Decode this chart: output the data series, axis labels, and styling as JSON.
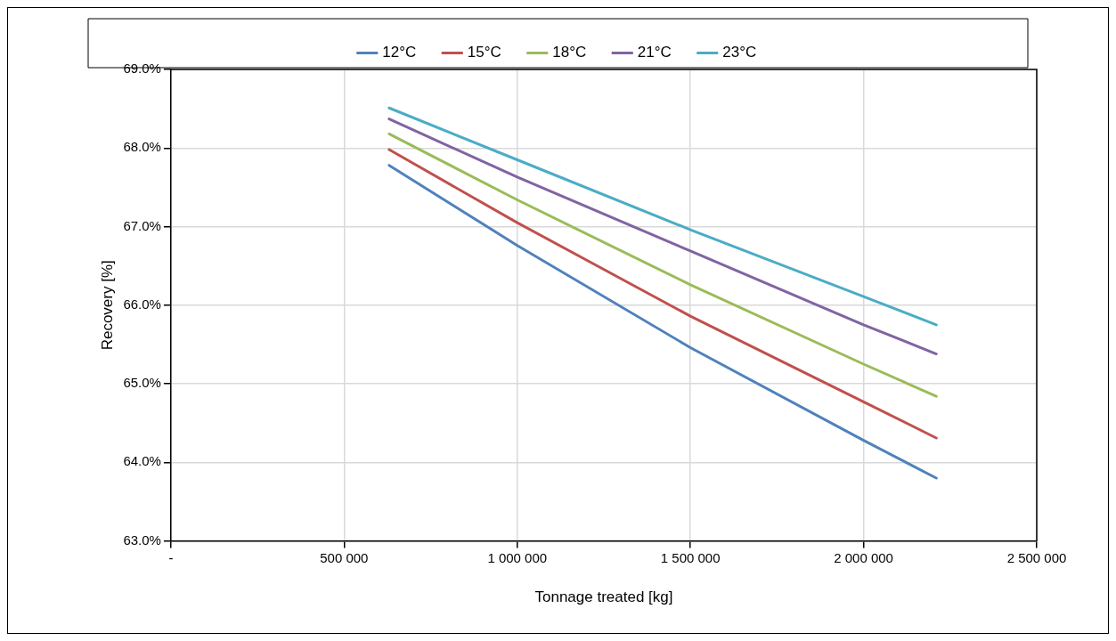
{
  "chart_data": {
    "type": "line",
    "xlabel": "Tonnage treated [kg]",
    "ylabel": "Recovery [%]",
    "x": [
      630000,
      1000000,
      1500000,
      2000000,
      2210000
    ],
    "series": [
      {
        "name": "12°C",
        "color": "#4f81bd",
        "values": [
          67.78,
          66.76,
          65.46,
          64.28,
          63.8
        ]
      },
      {
        "name": "15°C",
        "color": "#c0504d",
        "values": [
          67.98,
          67.05,
          65.86,
          64.77,
          64.31
        ]
      },
      {
        "name": "18°C",
        "color": "#9bbb59",
        "values": [
          68.18,
          67.34,
          66.26,
          65.25,
          64.84
        ]
      },
      {
        "name": "21°C",
        "color": "#8064a2",
        "values": [
          68.37,
          67.63,
          66.69,
          65.75,
          65.38
        ]
      },
      {
        "name": "23°C",
        "color": "#4bacc6",
        "values": [
          68.51,
          67.85,
          66.96,
          66.11,
          65.75
        ]
      }
    ],
    "xlim": [
      0,
      2500000
    ],
    "xticks": [
      {
        "value": 0,
        "label": "-"
      },
      {
        "value": 500000,
        "label": "500 000"
      },
      {
        "value": 1000000,
        "label": "1 000 000"
      },
      {
        "value": 1500000,
        "label": "1 500 000"
      },
      {
        "value": 2000000,
        "label": "2 000 000"
      },
      {
        "value": 2500000,
        "label": "2 500 000"
      }
    ],
    "ylim": [
      63,
      69
    ],
    "yticks": [
      {
        "value": 63,
        "label": "63.0%"
      },
      {
        "value": 64,
        "label": "64.0%"
      },
      {
        "value": 65,
        "label": "65.0%"
      },
      {
        "value": 66,
        "label": "66.0%"
      },
      {
        "value": 67,
        "label": "67.0%"
      },
      {
        "value": 68,
        "label": "68.0%"
      },
      {
        "value": 69,
        "label": "69.0%"
      }
    ],
    "grid": true,
    "legend": "top",
    "marker": "none",
    "line_style": "solid"
  }
}
